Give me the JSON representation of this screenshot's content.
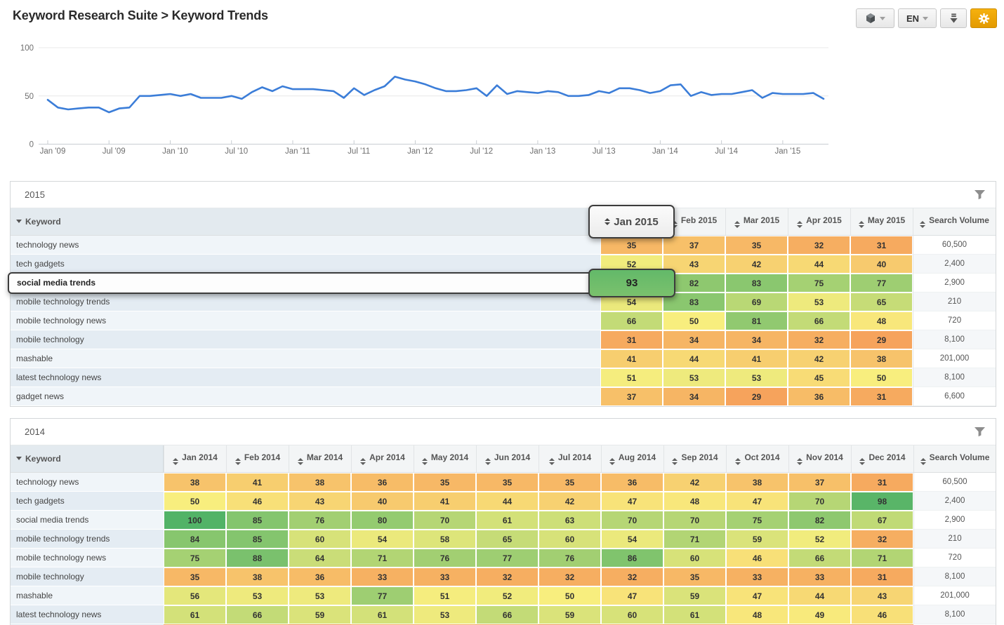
{
  "page_title": "Keyword Research Suite > Keyword Trends",
  "toolbar": {
    "product_button_icon": "cube-icon",
    "language_label": "EN",
    "download_button_icon": "download-icon",
    "settings_button_icon": "gear-icon",
    "settings_button_color": "#eda50c"
  },
  "chart_data": {
    "type": "line",
    "x_tick_labels": [
      "Jan '09",
      "Jul '09",
      "Jan '10",
      "Jul '10",
      "Jan '11",
      "Jul '11",
      "Jan '12",
      "Jul '12",
      "Jan '13",
      "Jul '13",
      "Jan '14",
      "Jul '14",
      "Jan '15"
    ],
    "x_tick_month_index": [
      0,
      6,
      12,
      18,
      24,
      30,
      36,
      42,
      48,
      54,
      60,
      66,
      72
    ],
    "y_tick_labels": [
      "0",
      "50",
      "100"
    ],
    "ylim": [
      0,
      100
    ],
    "grid": "horizontal",
    "legend": "none",
    "line_color": "#3b7dd8",
    "series": [
      {
        "name": "keyword-trend-monthly",
        "values": [
          46,
          38,
          36,
          37,
          38,
          38,
          33,
          37,
          38,
          50,
          50,
          51,
          52,
          50,
          52,
          48,
          48,
          48,
          50,
          47,
          54,
          59,
          55,
          60,
          57,
          57,
          57,
          56,
          55,
          48,
          58,
          51,
          56,
          60,
          70,
          67,
          65,
          62,
          58,
          55,
          55,
          56,
          58,
          50,
          61,
          52,
          55,
          54,
          53,
          55,
          54,
          50,
          50,
          51,
          55,
          53,
          58,
          58,
          56,
          53,
          55,
          61,
          62,
          50,
          54,
          51,
          52,
          52,
          54,
          56,
          48,
          53,
          52,
          52,
          52,
          53,
          47
        ]
      }
    ]
  },
  "heatmap_scale": {
    "low_value": 29,
    "low_color": "#f6a35c",
    "mid_value": 50,
    "mid_color": "#f8ee7e",
    "high_value": 100,
    "high_color": "#52b367"
  },
  "tables": [
    {
      "year": "2015",
      "keyword_header": "Keyword",
      "search_volume_header": "Search Volume",
      "month_columns": [
        "Jan 2015",
        "Feb 2015",
        "Mar 2015",
        "Apr 2015",
        "May 2015"
      ],
      "rows": [
        {
          "keyword": "technology news",
          "values": [
            35,
            37,
            35,
            32,
            31
          ],
          "search_volume": "60,500"
        },
        {
          "keyword": "tech gadgets",
          "values": [
            52,
            43,
            42,
            44,
            40
          ],
          "search_volume": "2,400"
        },
        {
          "keyword": "social media trends",
          "values": [
            93,
            82,
            83,
            75,
            77
          ],
          "search_volume": "2,900"
        },
        {
          "keyword": "mobile technology trends",
          "values": [
            54,
            83,
            69,
            53,
            65
          ],
          "search_volume": "210"
        },
        {
          "keyword": "mobile technology news",
          "values": [
            66,
            50,
            81,
            66,
            48
          ],
          "search_volume": "720"
        },
        {
          "keyword": "mobile technology",
          "values": [
            31,
            34,
            34,
            32,
            29
          ],
          "search_volume": "8,100"
        },
        {
          "keyword": "mashable",
          "values": [
            41,
            44,
            41,
            42,
            38
          ],
          "search_volume": "201,000"
        },
        {
          "keyword": "latest technology news",
          "values": [
            51,
            53,
            53,
            45,
            50
          ],
          "search_volume": "8,100"
        },
        {
          "keyword": "gadget news",
          "values": [
            37,
            34,
            29,
            36,
            31
          ],
          "search_volume": "6,600"
        }
      ],
      "highlight": {
        "column_label": "Jan 2015",
        "row_keyword": "social media trends",
        "value": "93"
      }
    },
    {
      "year": "2014",
      "keyword_header": "Keyword",
      "search_volume_header": "Search Volume",
      "month_columns": [
        "Jan 2014",
        "Feb 2014",
        "Mar 2014",
        "Apr 2014",
        "May 2014",
        "Jun 2014",
        "Jul 2014",
        "Aug 2014",
        "Sep 2014",
        "Oct 2014",
        "Nov 2014",
        "Dec 2014"
      ],
      "rows": [
        {
          "keyword": "technology news",
          "values": [
            38,
            41,
            38,
            36,
            35,
            35,
            35,
            36,
            42,
            38,
            37,
            31
          ],
          "search_volume": "60,500"
        },
        {
          "keyword": "tech gadgets",
          "values": [
            50,
            46,
            43,
            40,
            41,
            44,
            42,
            47,
            48,
            47,
            70,
            98
          ],
          "search_volume": "2,400"
        },
        {
          "keyword": "social media trends",
          "values": [
            100,
            85,
            76,
            80,
            70,
            61,
            63,
            70,
            70,
            75,
            82,
            67
          ],
          "search_volume": "2,900"
        },
        {
          "keyword": "mobile technology trends",
          "values": [
            84,
            85,
            60,
            54,
            58,
            65,
            60,
            54,
            71,
            59,
            52,
            32
          ],
          "search_volume": "210"
        },
        {
          "keyword": "mobile technology news",
          "values": [
            75,
            88,
            64,
            71,
            76,
            77,
            76,
            86,
            60,
            46,
            66,
            71
          ],
          "search_volume": "720"
        },
        {
          "keyword": "mobile technology",
          "values": [
            35,
            38,
            36,
            33,
            33,
            32,
            32,
            32,
            35,
            33,
            33,
            31
          ],
          "search_volume": "8,100"
        },
        {
          "keyword": "mashable",
          "values": [
            56,
            53,
            53,
            77,
            51,
            52,
            50,
            47,
            59,
            47,
            44,
            43
          ],
          "search_volume": "201,000"
        },
        {
          "keyword": "latest technology news",
          "values": [
            61,
            66,
            59,
            61,
            53,
            66,
            59,
            60,
            61,
            48,
            49,
            46
          ],
          "search_volume": "8,100"
        }
      ],
      "partial_row_cell_colors": [
        "#f5ac60",
        "#f5ac60",
        "#ee9a54",
        "#f5ac60",
        "#f5ac60",
        "#f3a75e",
        "#ee9a54",
        "#f5ac60",
        "#f3a75e",
        "#f5ac60",
        "#f5ac60",
        "#f3a75e"
      ]
    }
  ]
}
